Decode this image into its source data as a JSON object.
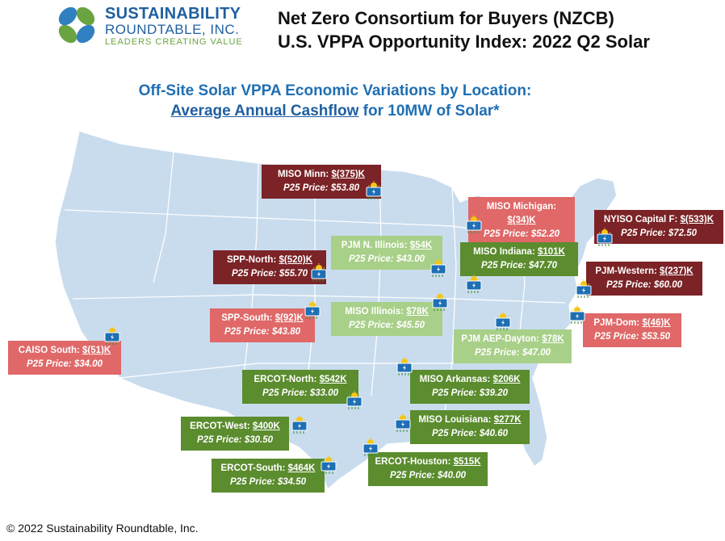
{
  "logo": {
    "line1": "SUSTAINABILITY",
    "line2": "ROUNDTABLE, INC.",
    "line3": "LEADERS CREATING VALUE"
  },
  "header": {
    "line1": "Net Zero Consortium for Buyers (NZCB)",
    "line2": "U.S. VPPA Opportunity Index: 2022 Q2 Solar"
  },
  "subtitle": {
    "line1": "Off-Site Solar VPPA Economic Variations by Location:",
    "underlined": "Average Annual Cashflow",
    "rest": " for 10MW of Solar*"
  },
  "colors": {
    "dark_red": "#7b2326",
    "pink": "#e06868",
    "light_green": "#a8d088",
    "dark_green": "#5b8c2e",
    "map": "#c9dcee"
  },
  "regions": [
    {
      "name": "MISO Minn:",
      "value": "$(375)K",
      "price": "P25 Price: $53.80",
      "color": "dark_red"
    },
    {
      "name": "MISO Michigan:",
      "value": "$(34)K",
      "price": "P25 Price: $52.20",
      "color": "pink"
    },
    {
      "name": "NYISO Capital F:",
      "value": "$(533)K",
      "price": "P25 Price: $72.50",
      "color": "dark_red"
    },
    {
      "name": "PJM N. Illinois:",
      "value": "$54K",
      "price": "P25 Price: $43.00",
      "color": "light_green"
    },
    {
      "name": "MISO Indiana:",
      "value": "$101K",
      "price": "P25 Price: $47.70",
      "color": "dark_green"
    },
    {
      "name": "SPP-North:",
      "value": "$(520)K",
      "price": "P25 Price: $55.70",
      "color": "dark_red"
    },
    {
      "name": "PJM-Western:",
      "value": "$(237)K",
      "price": "P25 Price: $60.00",
      "color": "dark_red"
    },
    {
      "name": "SPP-South:",
      "value": "$(92)K",
      "price": "P25 Price: $43.80",
      "color": "pink"
    },
    {
      "name": "MISO Illinois:",
      "value": "$78K",
      "price": "P25 Price: $45.50",
      "color": "light_green"
    },
    {
      "name": "PJM-Dom:",
      "value": "$(46)K",
      "price": "P25 Price: $53.50",
      "color": "pink"
    },
    {
      "name": "PJM AEP-Dayton:",
      "value": "$78K",
      "price": "P25 Price: $47.00",
      "color": "light_green"
    },
    {
      "name": "CAISO South:",
      "value": "$(51)K",
      "price": "P25 Price: $34.00",
      "color": "pink"
    },
    {
      "name": "ERCOT-North:",
      "value": "$542K",
      "price": "P25 Price: $33.00",
      "color": "dark_green"
    },
    {
      "name": "MISO Arkansas:",
      "value": "$206K",
      "price": "P25 Price: $39.20",
      "color": "dark_green"
    },
    {
      "name": "ERCOT-West:",
      "value": "$400K",
      "price": "P25 Price:  $30.50",
      "color": "dark_green"
    },
    {
      "name": "MISO Louisiana:",
      "value": "$277K",
      "price": "P25 Price: $40.60",
      "color": "dark_green"
    },
    {
      "name": "ERCOT-South:",
      "value": "$464K",
      "price": "P25 Price: $34.50",
      "color": "dark_green"
    },
    {
      "name": "ERCOT-Houston:",
      "value": "$515K",
      "price": "P25 Price: $40.00",
      "color": "dark_green"
    }
  ],
  "footer": "© 2022 Sustainability Roundtable, Inc."
}
